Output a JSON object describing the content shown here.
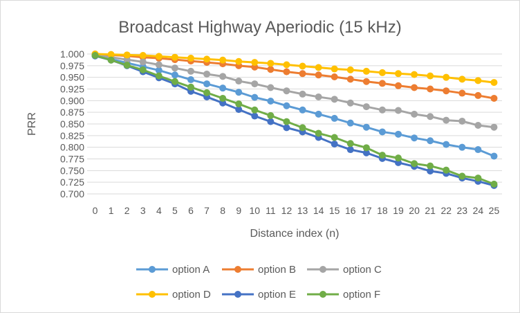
{
  "chart_data": {
    "type": "line",
    "title": "Broadcast Highway Aperiodic (15 kHz)",
    "xlabel": "Distance index (n)",
    "ylabel": "PRR",
    "x": [
      0,
      1,
      2,
      3,
      4,
      5,
      6,
      7,
      8,
      9,
      10,
      11,
      12,
      13,
      14,
      15,
      16,
      17,
      18,
      19,
      20,
      21,
      22,
      23,
      24,
      25
    ],
    "ylim": [
      0.7,
      1.0
    ],
    "yticks": [
      "0.700",
      "0.725",
      "0.750",
      "0.775",
      "0.800",
      "0.825",
      "0.850",
      "0.875",
      "0.900",
      "0.925",
      "0.950",
      "0.975",
      "1.000"
    ],
    "grid": true,
    "legend_position": "bottom",
    "series": [
      {
        "name": "option A",
        "color": "#5B9BD5",
        "values": [
          0.997,
          0.989,
          0.981,
          0.973,
          0.965,
          0.955,
          0.945,
          0.936,
          0.927,
          0.918,
          0.907,
          0.899,
          0.889,
          0.88,
          0.871,
          0.862,
          0.852,
          0.843,
          0.833,
          0.828,
          0.82,
          0.814,
          0.806,
          0.8,
          0.795,
          0.781
        ]
      },
      {
        "name": "option B",
        "color": "#ED7D31",
        "values": [
          1.0,
          0.998,
          0.996,
          0.993,
          0.991,
          0.988,
          0.985,
          0.982,
          0.979,
          0.975,
          0.972,
          0.967,
          0.962,
          0.958,
          0.955,
          0.951,
          0.946,
          0.941,
          0.937,
          0.932,
          0.928,
          0.925,
          0.921,
          0.916,
          0.911,
          0.905
        ]
      },
      {
        "name": "option C",
        "color": "#A5A5A5",
        "values": [
          0.998,
          0.993,
          0.988,
          0.983,
          0.977,
          0.97,
          0.963,
          0.957,
          0.952,
          0.942,
          0.936,
          0.928,
          0.921,
          0.914,
          0.908,
          0.903,
          0.895,
          0.887,
          0.88,
          0.879,
          0.871,
          0.866,
          0.858,
          0.856,
          0.847,
          0.843
        ]
      },
      {
        "name": "option D",
        "color": "#FFC000",
        "values": [
          1.0,
          0.999,
          0.998,
          0.997,
          0.995,
          0.993,
          0.991,
          0.989,
          0.987,
          0.984,
          0.982,
          0.98,
          0.977,
          0.974,
          0.971,
          0.968,
          0.966,
          0.963,
          0.96,
          0.958,
          0.956,
          0.953,
          0.95,
          0.946,
          0.943,
          0.939
        ]
      },
      {
        "name": "option E",
        "color": "#4472C4",
        "values": [
          0.996,
          0.987,
          0.975,
          0.962,
          0.949,
          0.936,
          0.92,
          0.908,
          0.895,
          0.881,
          0.867,
          0.855,
          0.842,
          0.833,
          0.821,
          0.807,
          0.795,
          0.788,
          0.776,
          0.767,
          0.759,
          0.749,
          0.744,
          0.734,
          0.727,
          0.718
        ]
      },
      {
        "name": "option F",
        "color": "#70AD47",
        "values": [
          0.997,
          0.987,
          0.976,
          0.966,
          0.953,
          0.941,
          0.929,
          0.917,
          0.905,
          0.893,
          0.88,
          0.868,
          0.855,
          0.842,
          0.83,
          0.821,
          0.808,
          0.799,
          0.783,
          0.777,
          0.765,
          0.76,
          0.751,
          0.738,
          0.734,
          0.721
        ]
      }
    ]
  }
}
